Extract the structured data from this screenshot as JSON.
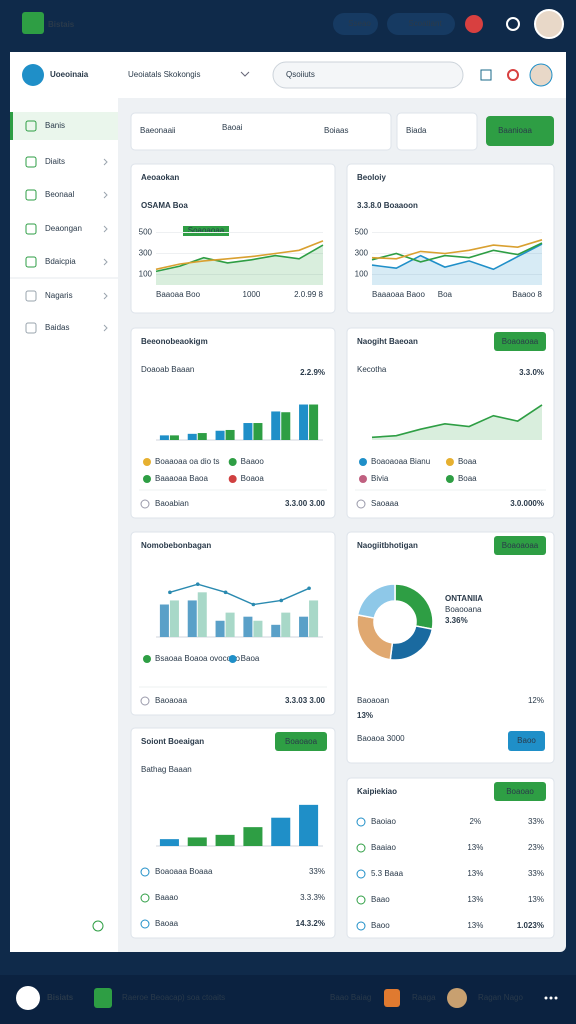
{
  "topbar": {
    "brand": "Bistais",
    "buttons": [
      "Sseao",
      "Scoatiant"
    ]
  },
  "header": {
    "app": "Uoeoinaia",
    "tab": "Ueoiatals Skokongis",
    "search": "Qsoiiuts"
  },
  "sidebar": {
    "items": [
      "Banis",
      "Diaits",
      "Beonaal",
      "Deaongan",
      "Bdaicpia",
      "Nagaris",
      "Baidas"
    ]
  },
  "filters": {
    "items": [
      "Baeonaaii",
      "Baoai",
      "Boiaas",
      "Biada"
    ],
    "button": "Baanioaa"
  },
  "chart_data": [
    {
      "type": "line",
      "title": "Aeoaokan",
      "subtitle": "OSAMA Boa",
      "annotation": "Soaoaoaa",
      "categories": [
        "Baaoaa Boo",
        null,
        null,
        null,
        "1000",
        null,
        null,
        "2.0.99 8"
      ],
      "ylim": [
        0,
        600
      ],
      "yticks": [
        100,
        300,
        500
      ],
      "series": [
        {
          "color": "#2e9e44",
          "area": true,
          "values": [
            130,
            180,
            260,
            210,
            240,
            280,
            250,
            380
          ]
        },
        {
          "color": "#d9a030",
          "values": [
            150,
            200,
            230,
            250,
            270,
            300,
            330,
            420
          ]
        }
      ]
    },
    {
      "type": "line",
      "title": "Beoloiy",
      "subtitle": "3.3.8.0 Boaaoon",
      "categories": [
        "Baaaoaa Baoo",
        null,
        null,
        "Boa",
        null,
        null,
        null,
        "Baaoo 8"
      ],
      "ylim": [
        0,
        600
      ],
      "yticks": [
        100,
        300,
        500
      ],
      "series": [
        {
          "color": "#1f8fc8",
          "area": true,
          "values": [
            190,
            160,
            280,
            170,
            230,
            150,
            270,
            390
          ]
        },
        {
          "color": "#2e9e44",
          "values": [
            240,
            300,
            220,
            280,
            260,
            330,
            290,
            400
          ]
        },
        {
          "color": "#d9a030",
          "values": [
            260,
            250,
            320,
            300,
            330,
            380,
            360,
            430
          ]
        }
      ]
    },
    {
      "type": "bar",
      "title": "Beeonobeaokigm",
      "subtitle": "Doaoab Baaan",
      "stat": "2.2.9%",
      "categories": [
        null,
        null,
        null,
        null,
        null,
        null
      ],
      "ylim": [
        0,
        70
      ],
      "series": [
        {
          "color": "#1f8fc8",
          "values": [
            6,
            8,
            12,
            22,
            37,
            46
          ]
        },
        {
          "color": "#2e9e44",
          "values": [
            6,
            9,
            13,
            22,
            36,
            46
          ]
        }
      ],
      "legend": [
        {
          "name": "Boaaoaa oa dio ts",
          "color": "#e6b030"
        },
        {
          "name": "Baaoo",
          "color": "#2e9e44"
        },
        {
          "name": "Baaaoaa Baoa",
          "color": "#2e9e44"
        },
        {
          "name": "Boaoa",
          "color": "#d04040"
        }
      ],
      "footer": [
        "Baoabian",
        "3.3.00 3.00"
      ]
    },
    {
      "type": "line",
      "title": "Naogiht Baeoan",
      "button": "Boaoaoaa",
      "subtitle": "Kecotha",
      "stat": "3.3.0%",
      "categories": [
        null,
        null,
        null,
        null,
        null,
        null,
        null,
        null
      ],
      "ylim": [
        0,
        100
      ],
      "series": [
        {
          "color": "#2e9e44",
          "area": true,
          "values": [
            5,
            8,
            20,
            30,
            25,
            45,
            35,
            65
          ]
        }
      ],
      "legend": [
        {
          "name": "Boaoaoaa Bianu",
          "color": "#1f8fc8"
        },
        {
          "name": "Boaa",
          "color": "#e6b030"
        },
        {
          "name": "Bivia",
          "color": "#c06080"
        },
        {
          "name": "Boaa",
          "color": "#2e9e44"
        }
      ],
      "footer": [
        "Saoaaa",
        "3.0.000%"
      ]
    },
    {
      "type": "bar",
      "title": "Nomobebonbagan",
      "categories": [
        null,
        null,
        null,
        null,
        null,
        null
      ],
      "ylim": [
        0,
        80
      ],
      "series": [
        {
          "color": "#5aa0c8",
          "values": [
            40,
            45,
            20,
            25,
            15,
            25
          ]
        },
        {
          "color": "#a8d8c8",
          "values": [
            45,
            55,
            30,
            20,
            30,
            45
          ]
        },
        {
          "color": "#2a8ab0",
          "kind": "line",
          "values": [
            55,
            65,
            55,
            40,
            45,
            60
          ]
        }
      ],
      "legend": [
        {
          "name": "Bsaoaa Boaoa ovocoao",
          "color": "#2e9e44"
        },
        {
          "name": "Baoa",
          "color": "#1f8fc8"
        }
      ],
      "footer": [
        "Baoaoaa",
        "3.3.03 3.00"
      ]
    },
    {
      "type": "pie",
      "title": "Naogiitbhotigan",
      "button": "Boaoaoaa",
      "headline": "ONTANIIA",
      "subtitle": "Boaooana",
      "stat": "3.36%",
      "values": [
        28,
        24,
        26,
        22
      ],
      "colors": [
        "#2e9e44",
        "#1a6aa0",
        "#e0a870",
        "#8ec8e8"
      ],
      "footer": [
        "Baoaoan",
        "12%"
      ],
      "total": "13%",
      "note": "Baoaoa 3000",
      "action": "Baoo"
    },
    {
      "type": "bar",
      "title": "Soiont Boeaigan",
      "button": "Boaoaoa",
      "subtitle": "Bathag Baaan",
      "categories": [
        null,
        null,
        null,
        null,
        null,
        null
      ],
      "ylim": [
        0,
        70
      ],
      "series": [
        {
          "colors": [
            "#1f8fc8",
            "#2e9e44",
            "#2e9e44",
            "#2e9e44",
            "#1f8fc8",
            "#1f8fc8"
          ],
          "values": [
            8,
            10,
            13,
            22,
            33,
            48
          ]
        }
      ],
      "rows": [
        [
          "Boaoaaa Boaaa",
          "33%"
        ],
        [
          "Baaao",
          "3.3.3%"
        ],
        [
          "Baoaa",
          "14.3.2%"
        ]
      ]
    },
    {
      "type": "table",
      "title": "Kaipiekiao",
      "button": "Boaoao",
      "rows": [
        [
          "Baoiao",
          "2%",
          "33%"
        ],
        [
          "Baaiao",
          "13%",
          "23%"
        ],
        [
          "5.3 Baaa",
          "13%",
          "33%"
        ],
        [
          "Baao",
          "13%",
          "13%"
        ],
        [
          "Baoo",
          "13%",
          "1.023%"
        ]
      ]
    }
  ],
  "footer": {
    "brand": "Bisiats",
    "path": "Raeroe Beoacap) soa ctoaits",
    "items": [
      "Baao Baiag",
      "Raaga",
      "Ragan Nago"
    ]
  }
}
